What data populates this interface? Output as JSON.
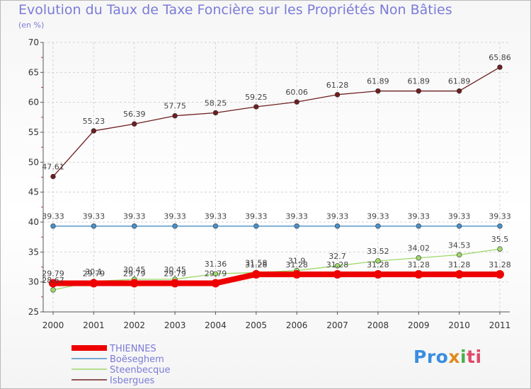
{
  "chart_data": {
    "type": "line",
    "title": "Evolution du Taux de Taxe Foncière sur les Propriétés Non Bâties",
    "ylabel": "(en %)",
    "xlabel": "",
    "ylim": [
      25,
      70
    ],
    "yticks": [
      25,
      30,
      35,
      40,
      45,
      50,
      55,
      60,
      65,
      70
    ],
    "categories": [
      "2000",
      "2001",
      "2002",
      "2003",
      "2004",
      "2005",
      "2006",
      "2007",
      "2008",
      "2009",
      "2010",
      "2011"
    ],
    "grid": true,
    "legend_position": "bottom-left",
    "series": [
      {
        "name": "Isbergues",
        "color": "#6e1e20",
        "values": [
          47.61,
          55.23,
          56.39,
          57.75,
          58.25,
          59.25,
          60.06,
          61.28,
          61.89,
          61.89,
          61.89,
          65.86
        ],
        "labels": [
          "47.61",
          "55.23",
          "56.39",
          "57.75",
          "58.25",
          "59.25",
          "60.06",
          "61.28",
          "61.89",
          "61.89",
          "61.89",
          "65.86"
        ]
      },
      {
        "name": "Boëseghem",
        "color": "#4a90c8",
        "values": [
          39.33,
          39.33,
          39.33,
          39.33,
          39.33,
          39.33,
          39.33,
          39.33,
          39.33,
          39.33,
          39.33,
          39.33
        ],
        "labels": [
          "39.33",
          "39.33",
          "39.33",
          "39.33",
          "39.33",
          "39.33",
          "39.33",
          "39.33",
          "39.33",
          "39.33",
          "39.33",
          "39.33"
        ]
      },
      {
        "name": "Steenbecque",
        "color": "#9ed86a",
        "values": [
          28.67,
          30.1,
          30.45,
          30.45,
          31.36,
          31.58,
          31.9,
          32.7,
          33.52,
          34.02,
          34.53,
          35.5
        ],
        "labels": [
          "28.67",
          "30.1",
          "30.45",
          "30.45",
          "31.36",
          "31.58",
          "31.9",
          "32.7",
          "33.52",
          "34.02",
          "34.53",
          "35.5"
        ]
      },
      {
        "name": "THIENNES",
        "color": "#ee0000",
        "values": [
          29.79,
          29.79,
          29.79,
          29.79,
          29.79,
          31.28,
          31.28,
          31.28,
          31.28,
          31.28,
          31.28,
          31.28
        ],
        "labels": [
          "29.79",
          "29.79",
          "29.79",
          "29.79",
          "29.79",
          "31.28",
          "31.28",
          "31.28",
          "31.28",
          "31.28",
          "31.28",
          "31.28"
        ]
      }
    ]
  },
  "legend": {
    "items": [
      {
        "name": "THIENNES",
        "color": "#ee0000"
      },
      {
        "name": "Boëseghem",
        "color": "#4a90c8"
      },
      {
        "name": "Steenbecque",
        "color": "#9ed86a"
      },
      {
        "name": "Isbergues",
        "color": "#6e1e20"
      }
    ]
  },
  "logo": {
    "p1": "Pro",
    "p2": "x",
    "p3": "i",
    "p4": "ti"
  }
}
